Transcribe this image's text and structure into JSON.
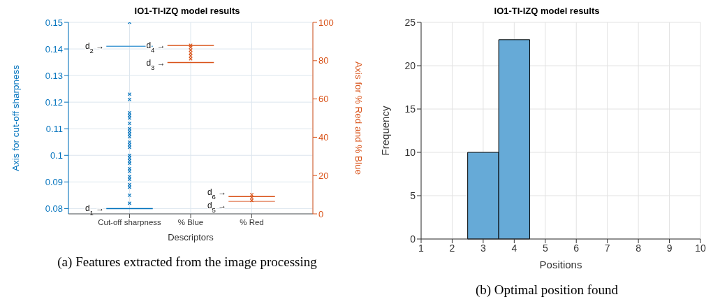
{
  "chart_data": [
    {
      "type": "scatter",
      "title": "IO1-TI-IZQ model results",
      "xlabel": "Descriptors",
      "ylabel": "Axis for cut-off sharpness",
      "y2label": "Axis for % Red and % Blue",
      "categories": [
        "Cut-off sharpness",
        "% Blue",
        "% Red"
      ],
      "ylim": [
        0.078,
        0.15
      ],
      "yticks": [
        0.08,
        0.09,
        0.1,
        0.11,
        0.12,
        0.13,
        0.14,
        0.15
      ],
      "y2lim": [
        0,
        100
      ],
      "y2ticks": [
        0,
        20,
        40,
        60,
        80,
        100
      ],
      "grid": true,
      "marker": "cross",
      "series": [
        {
          "color": "#0072bd",
          "x": [
            "Cut-off sharpness",
            "Cut-off sharpness",
            "Cut-off sharpness",
            "Cut-off sharpness",
            "Cut-off sharpness",
            "Cut-off sharpness",
            "Cut-off sharpness",
            "Cut-off sharpness",
            "Cut-off sharpness",
            "Cut-off sharpness",
            "Cut-off sharpness",
            "Cut-off sharpness",
            "Cut-off sharpness",
            "Cut-off sharpness",
            "Cut-off sharpness",
            "Cut-off sharpness",
            "Cut-off sharpness",
            "Cut-off sharpness",
            "Cut-off sharpness",
            "Cut-off sharpness",
            "Cut-off sharpness",
            "Cut-off sharpness",
            "Cut-off sharpness",
            "Cut-off sharpness",
            "Cut-off sharpness",
            "Cut-off sharpness"
          ],
          "values": [
            0.15,
            0.123,
            0.121,
            0.116,
            0.115,
            0.114,
            0.112,
            0.11,
            0.109,
            0.108,
            0.107,
            0.105,
            0.104,
            0.103,
            0.1,
            0.099,
            0.098,
            0.097,
            0.095,
            0.094,
            0.092,
            0.091,
            0.089,
            0.088,
            0.085,
            0.082
          ]
        },
        {
          "color": "#d95319",
          "axis": "y2",
          "x": [
            "% Blue",
            "% Blue",
            "% Blue",
            "% Blue",
            "% Blue",
            "% Blue",
            "% Red",
            "% Red",
            "% Red"
          ],
          "values": [
            81,
            82.5,
            84,
            85.5,
            87,
            88,
            7,
            8.5,
            10
          ]
        }
      ],
      "ref_lines": [
        {
          "axis": "y",
          "value": 0.08,
          "label": "d$_{1}$ →",
          "color": "#0072bd"
        },
        {
          "axis": "y",
          "value": 0.141,
          "label": "d$_{2}$ →",
          "color": "#4d9fd6"
        },
        {
          "axis": "y2",
          "value": 79,
          "label": "d$_{3}$ →",
          "color": "#d95319"
        },
        {
          "axis": "y2",
          "value": 88,
          "label": "d$_{4}$ →",
          "color": "#d95319"
        },
        {
          "axis": "y2",
          "value": 6.5,
          "label": "d$_{5}$ →",
          "color": "#e8987a"
        },
        {
          "axis": "y2",
          "value": 9,
          "label": "d$_{6}$ →",
          "color": "#d95319"
        }
      ],
      "annotations": [
        "(a) Features extracted from the image processing"
      ]
    },
    {
      "type": "histogram",
      "title": "IO1-TI-IZQ model results",
      "xlabel": "Positions",
      "ylabel": "Frequency",
      "bins": [
        2.5,
        3.5,
        4.5
      ],
      "values": [
        10,
        23
      ],
      "color": "#66aad7",
      "xlim": [
        1,
        10
      ],
      "xticks": [
        1,
        2,
        3,
        4,
        5,
        6,
        7,
        8,
        9,
        10
      ],
      "ylim": [
        0,
        25
      ],
      "yticks": [
        0,
        5,
        10,
        15,
        20,
        25
      ],
      "grid": true,
      "annotations": [
        "(b) Optimal position found"
      ]
    }
  ]
}
